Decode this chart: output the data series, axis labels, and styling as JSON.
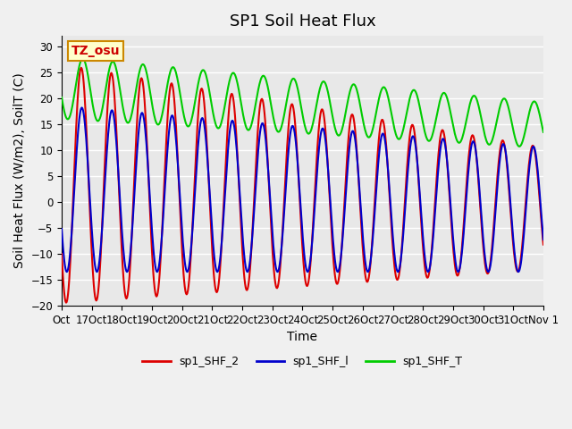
{
  "title": "SP1 Soil Heat Flux",
  "ylabel": "Soil Heat Flux (W/m2), SoilT (C)",
  "xlabel": "Time",
  "n_days": 16,
  "ylim": [
    -20,
    32
  ],
  "yticks": [
    -20,
    -15,
    -10,
    -5,
    0,
    5,
    10,
    15,
    20,
    25,
    30
  ],
  "xtick_labels": [
    "Oct",
    "17Oct",
    "18Oct",
    "19Oct",
    "20Oct",
    "21Oct",
    "22Oct",
    "23Oct",
    "24Oct",
    "25Oct",
    "26Oct",
    "27Oct",
    "28Oct",
    "29Oct",
    "30Oct",
    "31Oct",
    "Nov 1"
  ],
  "line_colors": {
    "shf2": "#dd0000",
    "shf1": "#0000cc",
    "shft": "#00cc00"
  },
  "line_widths": {
    "shf2": 1.5,
    "shf1": 1.5,
    "shft": 1.5
  },
  "legend_labels": [
    "sp1_SHF_2",
    "sp1_SHF_l",
    "sp1_SHF_T"
  ],
  "annotation_text": "TZ_osu",
  "annotation_color": "#cc0000",
  "annotation_bg": "#ffffcc",
  "annotation_border": "#cc8800",
  "background_color": "#e8e8e8",
  "grid_color": "#ffffff",
  "title_fontsize": 13,
  "label_fontsize": 10,
  "tick_fontsize": 8.5
}
